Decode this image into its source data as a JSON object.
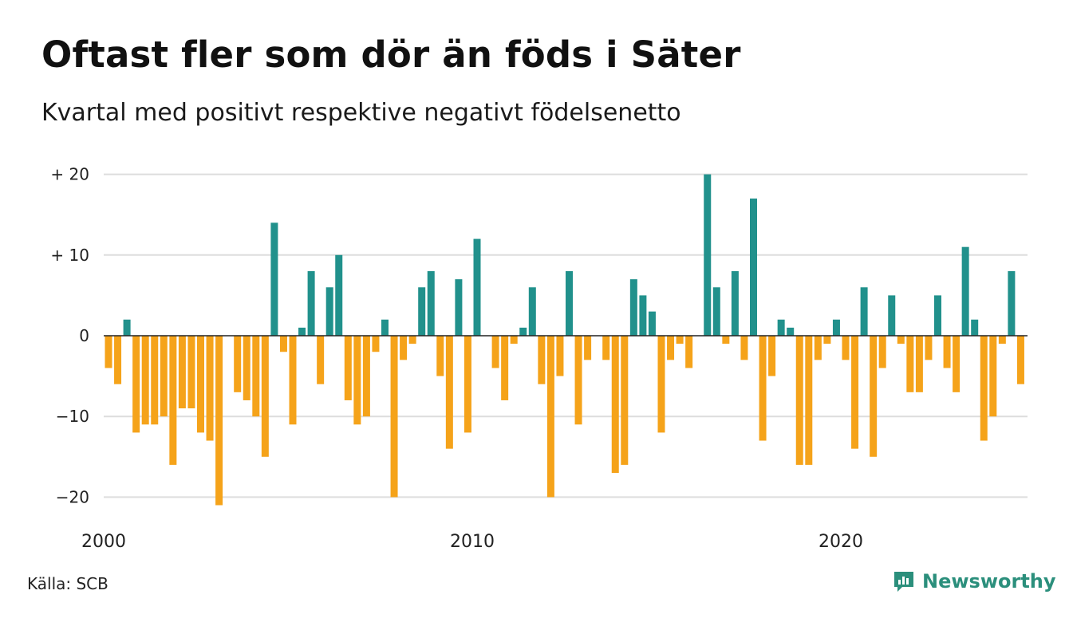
{
  "title": "Oftast fler som dör än föds i Säter",
  "subtitle": "Kvartal med positivt respektive negativt födelsenetto",
  "source": "Källa: SCB",
  "brand": "Newsworthy",
  "colors": {
    "positive": "#21918c",
    "negative": "#f5a31a",
    "grid": "#dddddd",
    "brand": "#2b8f7c"
  },
  "chart_data": {
    "type": "bar",
    "x_start": "2000 Q1",
    "x_ticks": [
      {
        "label": "2000",
        "index": 0
      },
      {
        "label": "2010",
        "index": 40
      },
      {
        "label": "2020",
        "index": 80
      }
    ],
    "y_ticks": [
      {
        "label": "+ 20",
        "value": 20
      },
      {
        "label": "+ 10",
        "value": 10
      },
      {
        "label": "0",
        "value": 0
      },
      {
        "label": "−10",
        "value": -10
      },
      {
        "label": "−20",
        "value": -20
      }
    ],
    "ylim": [
      -22,
      21
    ],
    "grid": true,
    "values": [
      -4,
      -6,
      2,
      -12,
      -11,
      -11,
      -10,
      -16,
      -9,
      -9,
      -12,
      -13,
      -21,
      0,
      -7,
      -8,
      -10,
      -15,
      14,
      -2,
      -11,
      1,
      8,
      -6,
      6,
      10,
      -8,
      -11,
      -10,
      -2,
      2,
      -20,
      -3,
      -1,
      6,
      8,
      -5,
      -14,
      7,
      -12,
      12,
      0,
      -4,
      -8,
      -1,
      1,
      6,
      -6,
      -20,
      -5,
      8,
      -11,
      -3,
      0,
      -3,
      -17,
      -16,
      7,
      5,
      3,
      -12,
      -3,
      -1,
      -4,
      0,
      20,
      6,
      -1,
      8,
      -3,
      17,
      -13,
      -5,
      2,
      1,
      -16,
      -16,
      -3,
      -1,
      2,
      -3,
      -14,
      6,
      -15,
      -4,
      5,
      -1,
      -7,
      -7,
      -3,
      5,
      -4,
      -7,
      11,
      2,
      -13,
      -10,
      -1,
      8,
      -6
    ]
  }
}
